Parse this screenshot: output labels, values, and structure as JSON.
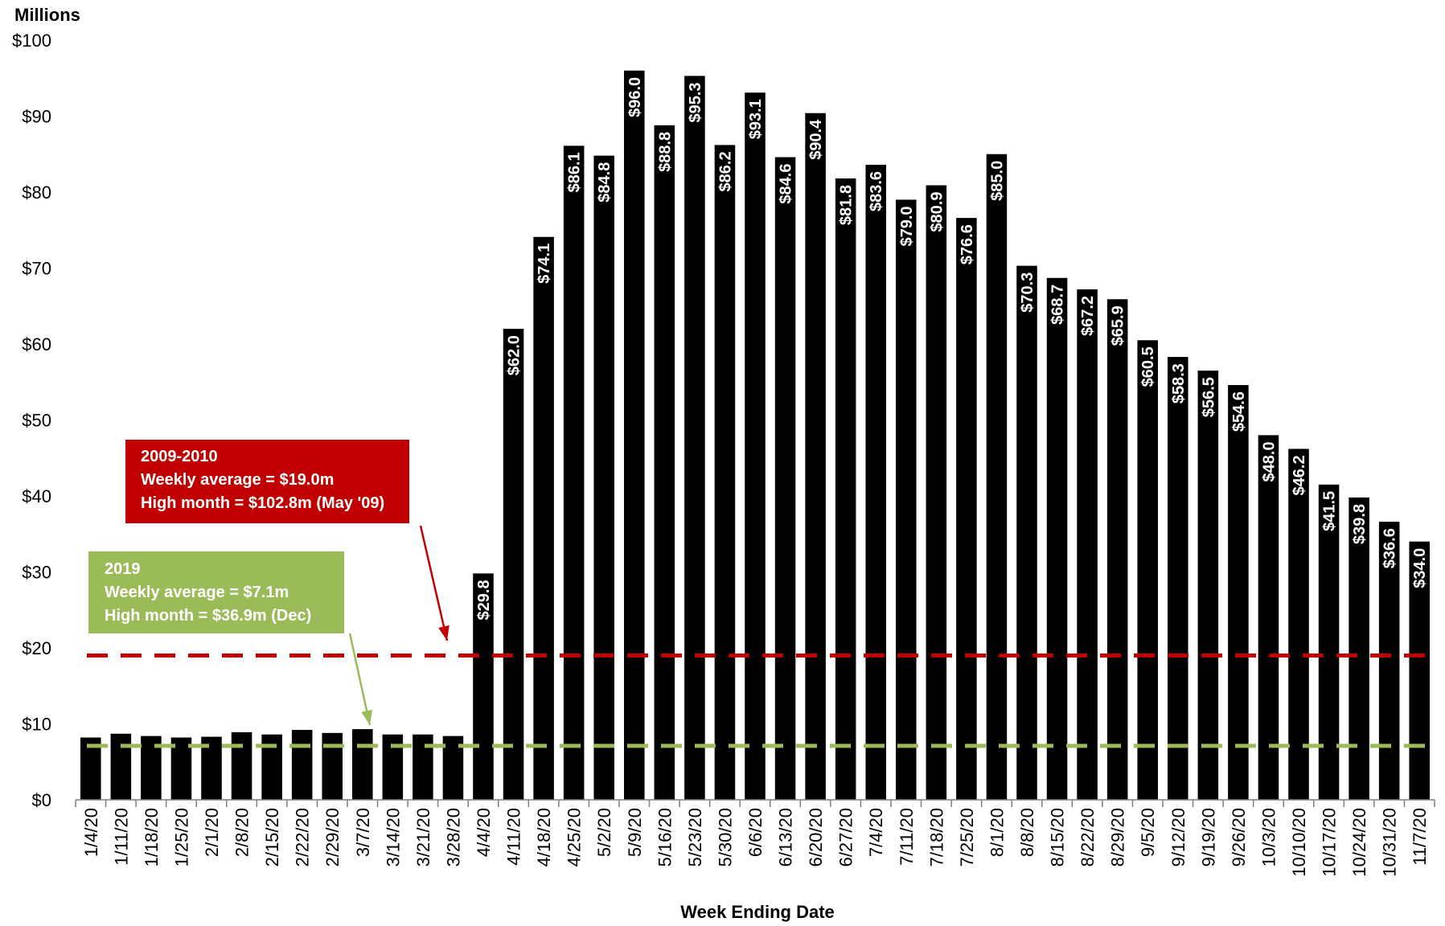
{
  "chart_data": {
    "type": "bar",
    "ylabel": "Millions",
    "xlabel": "Week Ending Date",
    "ylim": [
      0,
      100
    ],
    "yticks": [
      0,
      10,
      20,
      30,
      40,
      50,
      60,
      70,
      80,
      90,
      100
    ],
    "ytick_labels": [
      "$0",
      "$10",
      "$20",
      "$30",
      "$40",
      "$50",
      "$60",
      "$70",
      "$80",
      "$90",
      "$100"
    ],
    "categories": [
      "1/4/20",
      "1/11/20",
      "1/18/20",
      "1/25/20",
      "2/1/20",
      "2/8/20",
      "2/15/20",
      "2/22/20",
      "2/29/20",
      "3/7/20",
      "3/14/20",
      "3/21/20",
      "3/28/20",
      "4/4/20",
      "4/11/20",
      "4/18/20",
      "4/25/20",
      "5/2/20",
      "5/9/20",
      "5/16/20",
      "5/23/20",
      "5/30/20",
      "6/6/20",
      "6/13/20",
      "6/20/20",
      "6/27/20",
      "7/4/20",
      "7/11/20",
      "7/18/20",
      "7/25/20",
      "8/1/20",
      "8/8/20",
      "8/15/20",
      "8/22/20",
      "8/29/20",
      "9/5/20",
      "9/12/20",
      "9/19/20",
      "9/26/20",
      "10/3/20",
      "10/10/20",
      "10/17/20",
      "10/24/20",
      "10/31/20",
      "11/7/20"
    ],
    "values": [
      8.2,
      8.7,
      8.4,
      8.2,
      8.3,
      8.9,
      8.6,
      9.2,
      8.8,
      9.3,
      8.6,
      8.6,
      8.4,
      29.8,
      62.0,
      74.1,
      86.1,
      84.8,
      96.0,
      88.8,
      95.3,
      86.2,
      93.1,
      84.6,
      90.4,
      81.8,
      83.6,
      79.0,
      80.9,
      76.6,
      85.0,
      70.3,
      68.7,
      67.2,
      65.9,
      60.5,
      58.3,
      56.5,
      54.6,
      48.0,
      46.2,
      41.5,
      39.8,
      36.6,
      34.0
    ],
    "data_labels": [
      "",
      "",
      "",
      "",
      "",
      "",
      "",
      "",
      "",
      "",
      "",
      "",
      "",
      "$29.8",
      "$62.0",
      "$74.1",
      "$86.1",
      "$84.8",
      "$96.0",
      "$88.8",
      "$95.3",
      "$86.2",
      "$93.1",
      "$84.6",
      "$90.4",
      "$81.8",
      "$83.6",
      "$79.0",
      "$80.9",
      "$76.6",
      "$85.0",
      "$70.3",
      "$68.7",
      "$67.2",
      "$65.9",
      "$60.5",
      "$58.3",
      "$56.5",
      "$54.6",
      "$48.0",
      "$46.2",
      "$41.5",
      "$39.8",
      "$36.6",
      "$34.0"
    ],
    "bar_color": "#000000",
    "reference_lines": [
      {
        "name": "2009-2010",
        "value": 19.0,
        "color": "#c00000",
        "style": "dashed"
      },
      {
        "name": "2019",
        "value": 7.1,
        "color": "#9bbb59",
        "style": "dashed"
      }
    ],
    "annotations": [
      {
        "color": "#c00000",
        "lines": [
          "2009-2010",
          "Weekly average = $19.0m",
          "High month = $102.8m (May '09)"
        ]
      },
      {
        "color": "#9bbb59",
        "lines": [
          "2019",
          "Weekly average = $7.1m",
          "High month = $36.9m (Dec)"
        ]
      }
    ]
  }
}
